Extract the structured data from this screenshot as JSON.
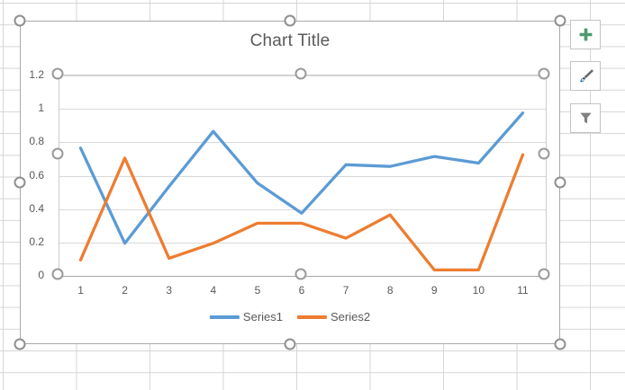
{
  "chart_data": {
    "type": "line",
    "title": "Chart Title",
    "categories": [
      "1",
      "2",
      "3",
      "4",
      "5",
      "6",
      "7",
      "8",
      "9",
      "10",
      "11"
    ],
    "series": [
      {
        "name": "Series1",
        "color": "#5B9BD5",
        "values": [
          0.76,
          0.19,
          0.53,
          0.86,
          0.55,
          0.37,
          0.66,
          0.65,
          0.71,
          0.67,
          0.97
        ]
      },
      {
        "name": "Series2",
        "color": "#ED7D31",
        "values": [
          0.09,
          0.7,
          0.1,
          0.19,
          0.31,
          0.31,
          0.22,
          0.36,
          0.03,
          0.03,
          0.72
        ]
      }
    ],
    "ylim": [
      0,
      1.2
    ],
    "ytick_step": 0.2,
    "ytick_labels": [
      "0",
      "0.2",
      "0.4",
      "0.6",
      "0.8",
      "1",
      "1.2"
    ],
    "grid": true,
    "legend_position": "bottom"
  },
  "side_buttons": [
    {
      "id": "chart-elements-button",
      "icon": "plus-icon",
      "color": "#4E9A71"
    },
    {
      "id": "chart-styles-button",
      "icon": "paintbrush-icon",
      "color": "#595959",
      "tip_color": "#2E75B6"
    },
    {
      "id": "chart-filters-button",
      "icon": "funnel-icon",
      "color": "#808080"
    }
  ],
  "colors": {
    "chart_border": "#a9a9a9",
    "plot_border": "#cccccc",
    "gridline": "#d9d9d9",
    "axis_line": "#a6a6a6",
    "text": "#595959",
    "sheet_grid": "#d6d6d6"
  }
}
